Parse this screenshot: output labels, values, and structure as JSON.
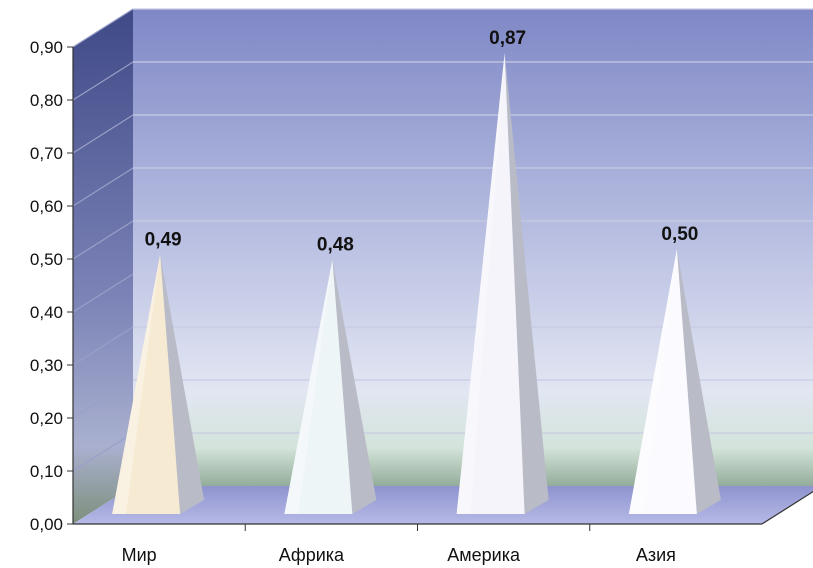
{
  "chart_data": {
    "type": "bar",
    "bar_shape": "pyramid",
    "style": "3d",
    "categories": [
      "Мир",
      "Африка",
      "Америка",
      "Азия"
    ],
    "values": [
      0.49,
      0.48,
      0.87,
      0.5
    ],
    "data_labels": [
      "0,49",
      "0,48",
      "0,87",
      "0,50"
    ],
    "yticks": [
      0,
      0.1,
      0.2,
      0.3,
      0.4,
      0.5,
      0.6,
      0.7,
      0.8,
      0.9
    ],
    "ytick_labels": [
      "0,00",
      "0,10",
      "0,20",
      "0,30",
      "0,40",
      "0,50",
      "0,60",
      "0,70",
      "0,80",
      "0,90"
    ],
    "ylim": [
      0,
      0.9
    ],
    "grid": true,
    "legend": "none",
    "colors": {
      "bars": [
        "#f6ead2",
        "#eef5f7",
        "#f4f4fa",
        "#fbfbff"
      ],
      "back_wall_top": "#8088c6",
      "back_wall_bottom": "#dfe9e6",
      "side_wall": "#4d5793",
      "floor": "#a2a6dc",
      "gridline": "#c4c8e2"
    }
  }
}
